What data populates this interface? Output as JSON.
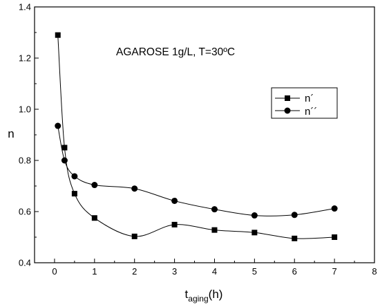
{
  "chart_data": {
    "type": "scatter",
    "annotation": "AGAROSE 1g/L, T=30ºC",
    "ylabel": "n",
    "xlabel_main": "t",
    "xlabel_sub": "aging",
    "xlabel_unit": "(h)",
    "xlim": [
      -0.5,
      8
    ],
    "ylim": [
      0.4,
      1.4
    ],
    "xticks": [
      "0",
      "1",
      "2",
      "3",
      "4",
      "5",
      "6",
      "7",
      "8"
    ],
    "yticks": [
      "0.4",
      "0.6",
      "0.8",
      "1.0",
      "1.2",
      "1.4"
    ],
    "grid": false,
    "legend_position": "right",
    "series": [
      {
        "name": "n´",
        "marker": "square",
        "x": [
          0.083,
          0.25,
          0.5,
          1,
          2,
          3,
          4,
          5,
          6,
          7
        ],
        "y": [
          1.29,
          0.85,
          0.67,
          0.575,
          0.503,
          0.549,
          0.528,
          0.518,
          0.495,
          0.5
        ]
      },
      {
        "name": "n´´",
        "marker": "circle",
        "x": [
          0.083,
          0.25,
          0.5,
          1,
          2,
          3,
          4,
          5,
          6,
          7
        ],
        "y": [
          0.935,
          0.8,
          0.738,
          0.704,
          0.69,
          0.642,
          0.609,
          0.585,
          0.587,
          0.612
        ]
      }
    ]
  }
}
